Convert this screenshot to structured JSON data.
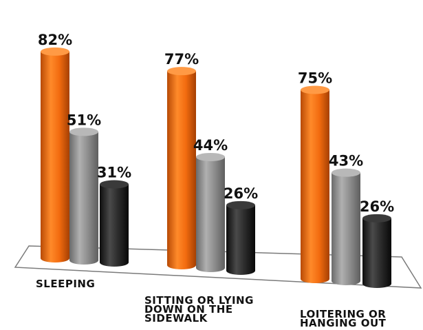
{
  "chart_data": {
    "type": "bar",
    "categories": [
      "SLEEPING",
      "SITTING OR LYING DOWN ON THE SIDEWALK",
      "LOITERING OR HANGING OUT"
    ],
    "category_label_lines": [
      [
        "SLEEPING"
      ],
      [
        "SITTING OR LYING",
        "DOWN ON THE",
        "SIDEWALK"
      ],
      [
        "LOITERING OR",
        "HANGING OUT"
      ]
    ],
    "series": [
      {
        "values": [
          82,
          77,
          75
        ],
        "color": "#f26b0f"
      },
      {
        "values": [
          51,
          44,
          43
        ],
        "color": "#8c8c8c"
      },
      {
        "values": [
          31,
          26,
          26
        ],
        "color": "#2a2a2a"
      }
    ],
    "value_labels": [
      [
        "82%",
        "77%",
        "75%"
      ],
      [
        "51%",
        "44%",
        "43%"
      ],
      [
        "31%",
        "26%",
        "26%"
      ]
    ],
    "ylim": [
      0,
      100
    ],
    "style": "3d-cylinder"
  }
}
